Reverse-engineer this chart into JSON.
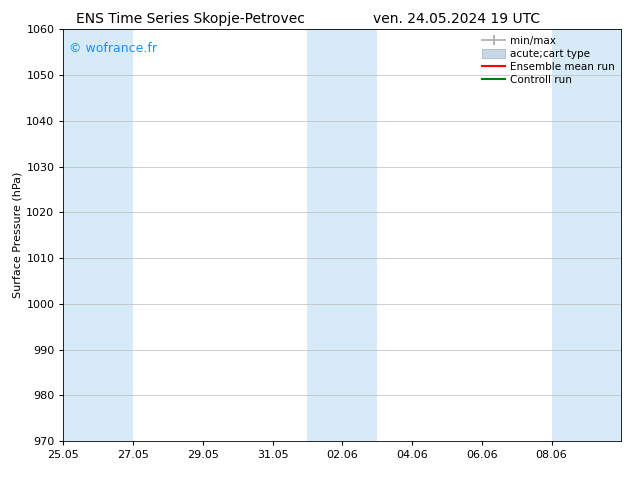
{
  "title_left": "ENS Time Series Skopje-Petrovec",
  "title_right": "ven. 24.05.2024 19 UTC",
  "ylabel": "Surface Pressure (hPa)",
  "ylim": [
    970,
    1060
  ],
  "yticks": [
    970,
    980,
    990,
    1000,
    1010,
    1020,
    1030,
    1040,
    1050,
    1060
  ],
  "xtick_labels": [
    "25.05",
    "27.05",
    "29.05",
    "31.05",
    "02.06",
    "04.06",
    "06.06",
    "08.06"
  ],
  "xtick_dates": [
    "2024-05-25",
    "2024-05-27",
    "2024-05-29",
    "2024-05-31",
    "2024-06-02",
    "2024-06-04",
    "2024-06-06",
    "2024-06-08"
  ],
  "xlim_start": "2024-05-25",
  "xlim_end": "2024-06-10",
  "shaded_ranges": [
    [
      "2024-05-25",
      "2024-05-26"
    ],
    [
      "2024-05-26",
      "2024-05-27"
    ],
    [
      "2024-06-01",
      "2024-06-02"
    ],
    [
      "2024-06-02",
      "2024-06-03"
    ],
    [
      "2024-06-08",
      "2024-06-09"
    ],
    [
      "2024-06-09",
      "2024-06-10"
    ]
  ],
  "shade_color": "#d6eaf8",
  "watermark": "© wofrance.fr",
  "watermark_color": "#1e90ff",
  "legend_entries": [
    {
      "label": "min/max",
      "color": "#aaaaaa",
      "lw": 1.5
    },
    {
      "label": "acute;cart type",
      "color": "#c8d8e8",
      "lw": 6
    },
    {
      "label": "Ensemble mean run",
      "color": "#ff0000",
      "lw": 1.5
    },
    {
      "label": "Controll run",
      "color": "#008000",
      "lw": 1.5
    }
  ],
  "background_color": "#ffffff",
  "grid_color": "#bbbbbb",
  "title_fontsize": 10,
  "axis_label_fontsize": 8,
  "tick_fontsize": 8,
  "legend_fontsize": 7.5,
  "watermark_fontsize": 9
}
